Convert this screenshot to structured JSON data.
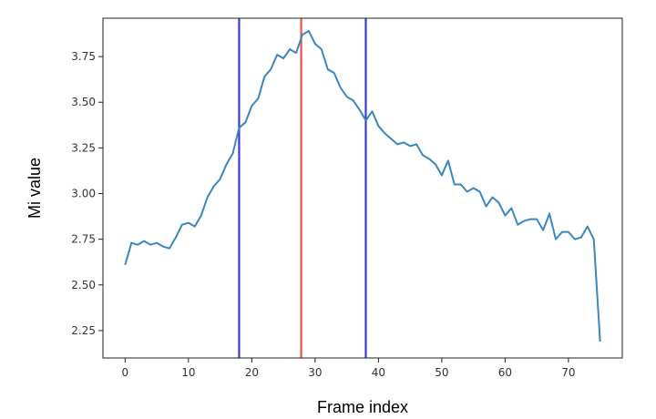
{
  "chart_data": {
    "type": "line",
    "title": "",
    "xlabel": "Frame index",
    "ylabel": "Mi value",
    "xlim": [
      -3.5,
      78.5
    ],
    "ylim": [
      2.1,
      3.96
    ],
    "x_ticks": [
      0,
      10,
      20,
      30,
      40,
      50,
      60,
      70
    ],
    "y_ticks": [
      2.25,
      2.5,
      2.75,
      3.0,
      3.25,
      3.5,
      3.75
    ],
    "x_tick_labels": [
      "0",
      "10",
      "20",
      "30",
      "40",
      "50",
      "60",
      "70"
    ],
    "y_tick_labels": [
      "2.25",
      "2.50",
      "2.75",
      "3.00",
      "3.25",
      "3.50",
      "3.75"
    ],
    "grid": false,
    "legend": "none",
    "series": [
      {
        "color": "#3a87bf",
        "x": [
          0,
          1,
          2,
          3,
          4,
          5,
          6,
          7,
          8,
          9,
          10,
          11,
          12,
          13,
          14,
          15,
          16,
          17,
          18,
          19,
          20,
          21,
          22,
          23,
          24,
          25,
          26,
          27,
          28,
          29,
          30,
          31,
          32,
          33,
          34,
          35,
          36,
          37,
          38,
          39,
          40,
          41,
          42,
          43,
          44,
          45,
          46,
          47,
          48,
          49,
          50,
          51,
          52,
          53,
          54,
          55,
          56,
          57,
          58,
          59,
          60,
          61,
          62,
          63,
          64,
          65,
          66,
          67,
          68,
          69,
          70,
          71,
          72,
          73,
          74,
          75
        ],
        "values": [
          2.61,
          2.73,
          2.72,
          2.74,
          2.72,
          2.73,
          2.71,
          2.7,
          2.76,
          2.83,
          2.84,
          2.82,
          2.88,
          2.98,
          3.04,
          3.08,
          3.16,
          3.22,
          3.36,
          3.39,
          3.48,
          3.52,
          3.64,
          3.68,
          3.76,
          3.74,
          3.79,
          3.77,
          3.87,
          3.89,
          3.82,
          3.79,
          3.68,
          3.66,
          3.58,
          3.53,
          3.51,
          3.46,
          3.4,
          3.45,
          3.37,
          3.33,
          3.3,
          3.27,
          3.28,
          3.26,
          3.27,
          3.21,
          3.19,
          3.16,
          3.1,
          3.18,
          3.05,
          3.05,
          3.01,
          3.03,
          3.01,
          2.93,
          2.98,
          2.95,
          2.88,
          2.92,
          2.83,
          2.85,
          2.86,
          2.86,
          2.8,
          2.89,
          2.75,
          2.79,
          2.79,
          2.75,
          2.76,
          2.82,
          2.75,
          2.19
        ]
      }
    ],
    "vlines": [
      {
        "x": 18,
        "color": "#3b3bd6"
      },
      {
        "x": 27.8,
        "color": "#e8534d"
      },
      {
        "x": 38,
        "color": "#3b3bd6"
      }
    ]
  }
}
